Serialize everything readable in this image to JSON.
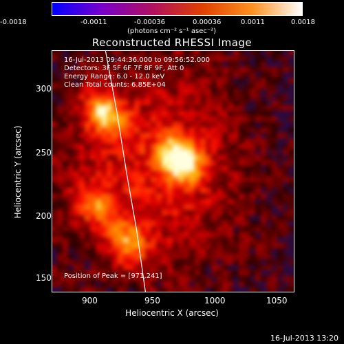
{
  "colorbar": {
    "ticks": [
      "-0.0018",
      "-0.0011",
      "-0.00036",
      "0.00036",
      "0.0011",
      "0.0018"
    ],
    "units": "(photons cm⁻² s⁻¹ asec⁻²)",
    "colors": [
      "#0000ff",
      "#7a00c8",
      "#b01060",
      "#e04000",
      "#ff9020",
      "#ffffff"
    ]
  },
  "title": "Reconstructed RHESSI Image",
  "annotations": {
    "time_range": "16-Jul-2013 09:44:36.000 to 09:56:52.000",
    "detectors": "Detectors: 3F 5F 6F 7F 8F 9F, Att 0",
    "energy": "Energy Range: 6.0 - 12.0 keV",
    "clean": "Clean     Total counts: 6.85E+04",
    "peak": "Position of Peak = [971,241]"
  },
  "chart_data": {
    "type": "heatmap",
    "xlabel": "Heliocentric X (arcsec)",
    "ylabel": "Heliocentric Y (arcsec)",
    "xlim": [
      868,
      1062
    ],
    "ylim": [
      136,
      328
    ],
    "x_ticks": [
      "900",
      "950",
      "1000",
      "1050"
    ],
    "y_ticks": [
      "300",
      "250",
      "200",
      "150"
    ],
    "x_tick_values": [
      900,
      950,
      1000,
      1050
    ],
    "y_tick_values": [
      300,
      250,
      200,
      150
    ],
    "peak": [
      971,
      241
    ],
    "sources": [
      {
        "x": 971,
        "y": 241,
        "intensity": 1.0
      },
      {
        "x": 910,
        "y": 278,
        "intensity": 0.75
      },
      {
        "x": 929,
        "y": 175,
        "intensity": 0.55
      },
      {
        "x": 903,
        "y": 205,
        "intensity": 0.45
      }
    ],
    "limb_curve": [
      [
        911,
        328
      ],
      [
        920,
        280
      ],
      [
        928,
        230
      ],
      [
        936,
        185
      ],
      [
        943,
        136
      ]
    ]
  },
  "timestamp": "16-Jul-2013 13:20"
}
